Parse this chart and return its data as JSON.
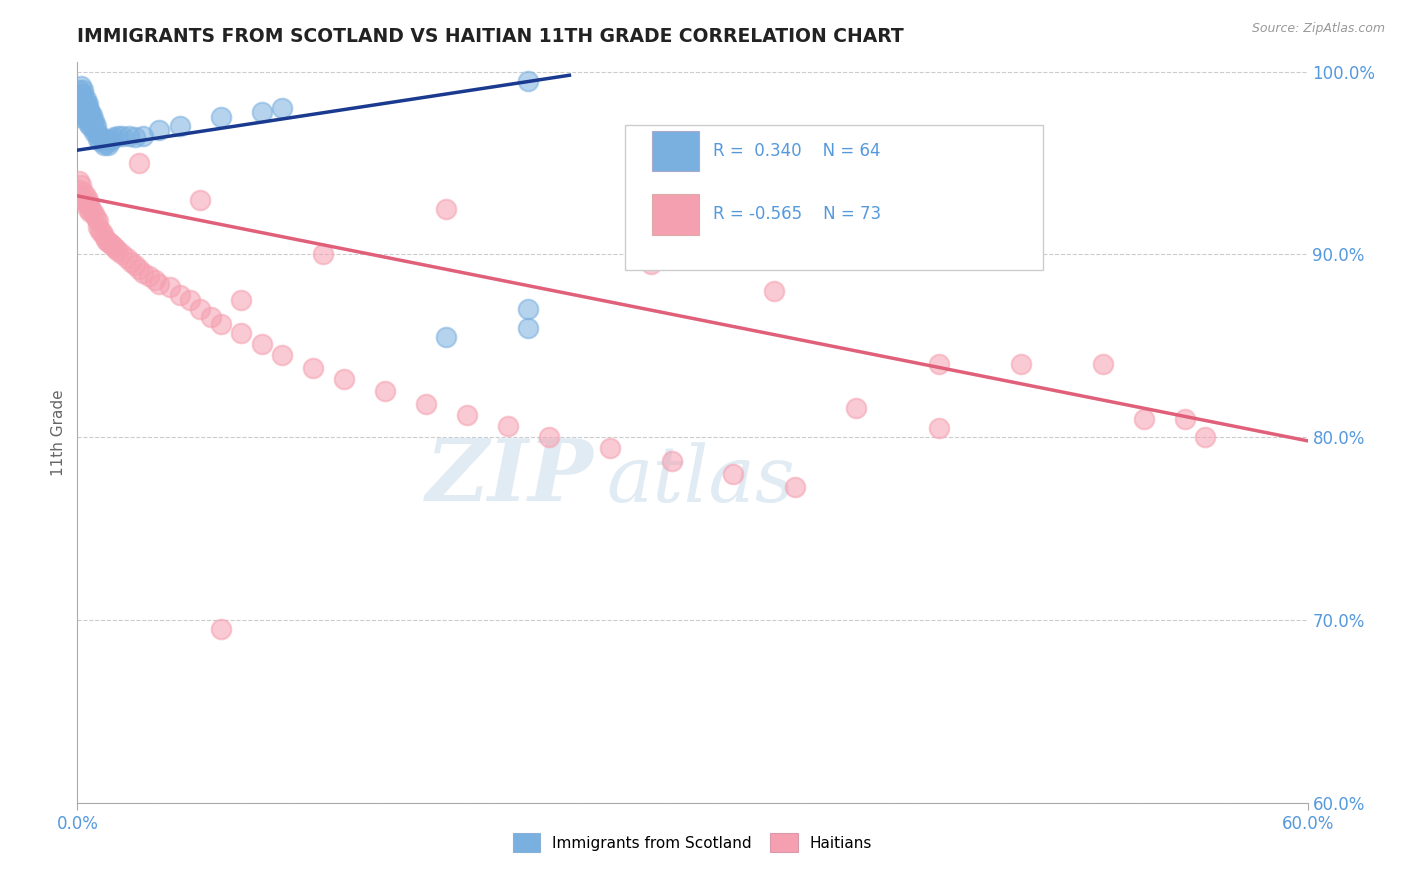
{
  "title": "IMMIGRANTS FROM SCOTLAND VS HAITIAN 11TH GRADE CORRELATION CHART",
  "source_text": "Source: ZipAtlas.com",
  "ylabel": "11th Grade",
  "xlim": [
    0.0,
    0.6
  ],
  "ylim": [
    0.6,
    1.005
  ],
  "y_ticks": [
    0.6,
    0.7,
    0.8,
    0.9,
    1.0
  ],
  "y_tick_labels": [
    "60.0%",
    "70.0%",
    "80.0%",
    "90.0%",
    "100.0%"
  ],
  "blue_color": "#7ab0e0",
  "pink_color": "#f5a0b0",
  "blue_line_color": "#1a3a8f",
  "pink_line_color": "#e0607a",
  "background_color": "#ffffff",
  "grid_color": "#cccccc",
  "title_color": "#222222",
  "axis_label_color": "#5599dd",
  "legend_label_color": "#5599dd",
  "watermark_zip_color": "#dde8f5",
  "watermark_atlas_color": "#dde8f5",
  "scotland_x": [
    0.001,
    0.001,
    0.001,
    0.001,
    0.002,
    0.002,
    0.002,
    0.002,
    0.002,
    0.002,
    0.002,
    0.003,
    0.003,
    0.003,
    0.003,
    0.003,
    0.003,
    0.004,
    0.004,
    0.004,
    0.004,
    0.004,
    0.005,
    0.005,
    0.005,
    0.005,
    0.005,
    0.006,
    0.006,
    0.006,
    0.006,
    0.007,
    0.007,
    0.007,
    0.008,
    0.008,
    0.008,
    0.009,
    0.009,
    0.01,
    0.01,
    0.011,
    0.011,
    0.012,
    0.013,
    0.014,
    0.015,
    0.016,
    0.017,
    0.018,
    0.02,
    0.022,
    0.025,
    0.028,
    0.032,
    0.04,
    0.05,
    0.07,
    0.09,
    0.1,
    0.18,
    0.22,
    0.22,
    0.22
  ],
  "scotland_y": [
    0.99,
    0.985,
    0.985,
    0.98,
    0.992,
    0.988,
    0.985,
    0.983,
    0.98,
    0.978,
    0.975,
    0.99,
    0.988,
    0.985,
    0.982,
    0.98,
    0.977,
    0.985,
    0.983,
    0.98,
    0.978,
    0.975,
    0.982,
    0.98,
    0.978,
    0.975,
    0.972,
    0.978,
    0.976,
    0.973,
    0.97,
    0.976,
    0.973,
    0.97,
    0.973,
    0.97,
    0.967,
    0.97,
    0.967,
    0.966,
    0.963,
    0.965,
    0.962,
    0.963,
    0.96,
    0.961,
    0.96,
    0.962,
    0.963,
    0.964,
    0.965,
    0.965,
    0.965,
    0.964,
    0.965,
    0.968,
    0.97,
    0.975,
    0.978,
    0.98,
    0.855,
    0.87,
    0.86,
    0.995
  ],
  "haitian_x": [
    0.001,
    0.001,
    0.002,
    0.002,
    0.003,
    0.003,
    0.004,
    0.004,
    0.005,
    0.005,
    0.005,
    0.006,
    0.006,
    0.007,
    0.008,
    0.009,
    0.01,
    0.01,
    0.011,
    0.012,
    0.013,
    0.014,
    0.015,
    0.016,
    0.017,
    0.018,
    0.019,
    0.02,
    0.022,
    0.024,
    0.026,
    0.028,
    0.03,
    0.032,
    0.035,
    0.038,
    0.04,
    0.045,
    0.05,
    0.055,
    0.06,
    0.065,
    0.07,
    0.08,
    0.09,
    0.1,
    0.115,
    0.13,
    0.15,
    0.17,
    0.19,
    0.21,
    0.23,
    0.26,
    0.29,
    0.32,
    0.35,
    0.38,
    0.42,
    0.46,
    0.5,
    0.52,
    0.54,
    0.55,
    0.03,
    0.06,
    0.18,
    0.28,
    0.34,
    0.12,
    0.08,
    0.07,
    0.42
  ],
  "haitian_y": [
    0.94,
    0.935,
    0.938,
    0.932,
    0.934,
    0.93,
    0.932,
    0.928,
    0.93,
    0.928,
    0.925,
    0.926,
    0.923,
    0.924,
    0.922,
    0.92,
    0.918,
    0.915,
    0.913,
    0.912,
    0.91,
    0.908,
    0.907,
    0.906,
    0.905,
    0.904,
    0.903,
    0.902,
    0.9,
    0.898,
    0.896,
    0.894,
    0.892,
    0.89,
    0.888,
    0.886,
    0.884,
    0.882,
    0.878,
    0.875,
    0.87,
    0.866,
    0.862,
    0.857,
    0.851,
    0.845,
    0.838,
    0.832,
    0.825,
    0.818,
    0.812,
    0.806,
    0.8,
    0.794,
    0.787,
    0.78,
    0.773,
    0.816,
    0.805,
    0.84,
    0.84,
    0.81,
    0.81,
    0.8,
    0.95,
    0.93,
    0.925,
    0.895,
    0.88,
    0.9,
    0.875,
    0.695,
    0.84
  ],
  "scot_line_x": [
    0.0,
    0.24
  ],
  "scot_line_y": [
    0.957,
    0.998
  ],
  "hait_line_x": [
    0.0,
    0.6
  ],
  "hait_line_y": [
    0.932,
    0.798
  ]
}
